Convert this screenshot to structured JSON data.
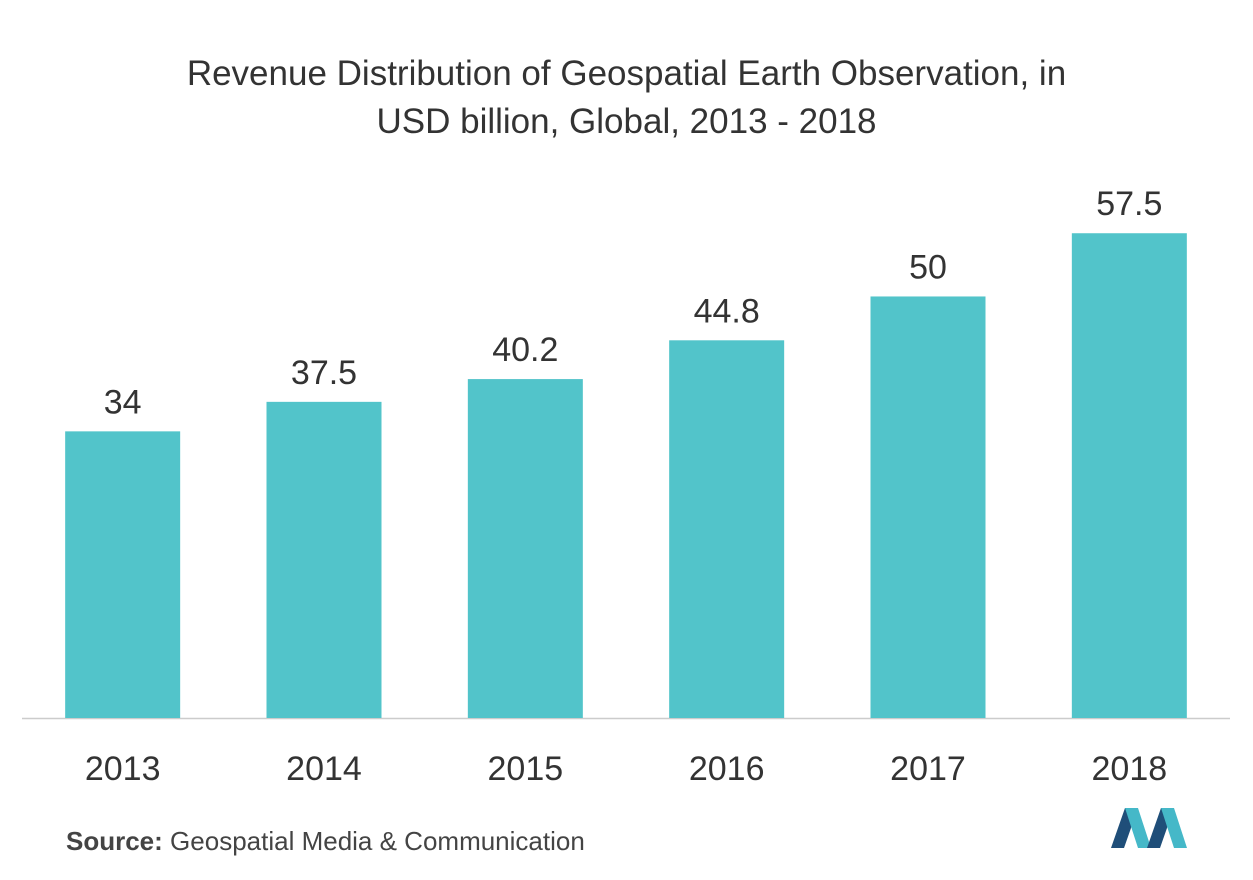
{
  "title_line1": "Revenue Distribution of Geospatial Earth Observation, in",
  "title_line2": "USD billion, Global, 2013 - 2018",
  "source": {
    "label": "Source:",
    "text": "Geospatial Media & Communication"
  },
  "colors": {
    "bar": "#52c4ca",
    "axis": "#cccccc",
    "text": "#333333",
    "logo_dark": "#1f4e79",
    "logo_light": "#45b8c8"
  },
  "logo": {
    "icon": "market-intelligence-logo"
  },
  "chart_data": {
    "type": "bar",
    "title": "Revenue Distribution of Geospatial Earth Observation, in USD billion, Global, 2013 - 2018",
    "xlabel": "",
    "ylabel": "",
    "categories": [
      "2013",
      "2014",
      "2015",
      "2016",
      "2017",
      "2018"
    ],
    "values": [
      34,
      37.5,
      40.2,
      44.8,
      50,
      57.5
    ],
    "data_labels": [
      "34",
      "37.5",
      "40.2",
      "44.8",
      "50",
      "57.5"
    ],
    "ylim": [
      0,
      65
    ],
    "grid": false,
    "legend": "none"
  }
}
